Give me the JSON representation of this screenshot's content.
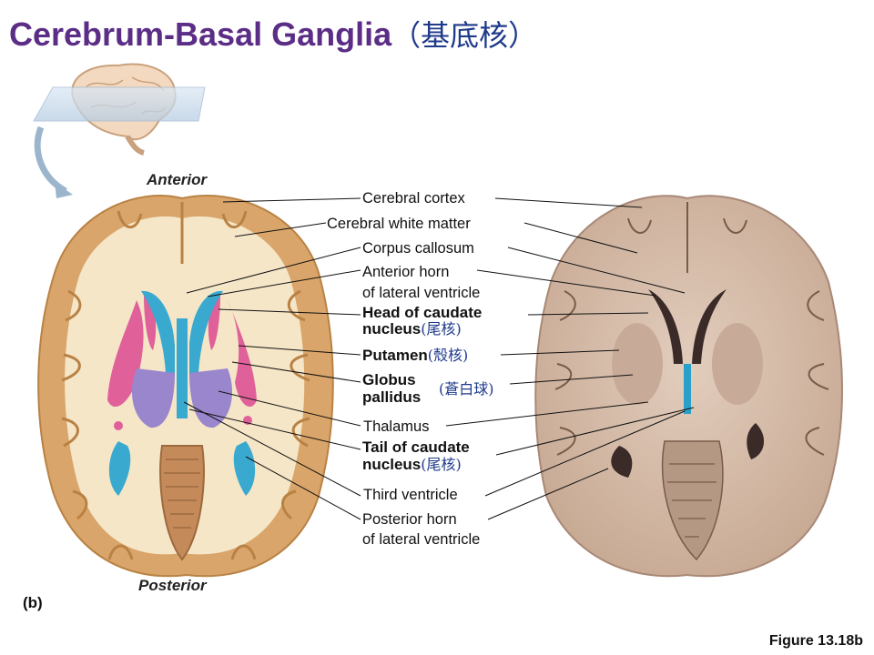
{
  "title": {
    "text": "Cerebrum-Basal Ganglia",
    "cjk": "（基底核）"
  },
  "orientation": {
    "anterior": "Anterior",
    "posterior": "Posterior"
  },
  "panel_label": "(b)",
  "figure_label": "Figure 13.18b",
  "labels": {
    "cerebral_cortex": "Cerebral cortex",
    "cerebral_white_matter": "Cerebral white matter",
    "corpus_callosum": "Corpus callosum",
    "anterior_horn_1": "Anterior horn",
    "anterior_horn_2": "of lateral ventricle",
    "head_caudate_1": "Head of caudate",
    "head_caudate_2": "nucleus",
    "head_caudate_cjk": "(尾核)",
    "putamen": "Putamen",
    "putamen_cjk": "(殼核)",
    "globus_1": "Globus",
    "globus_2": "pallidus",
    "globus_cjk": "(蒼白球)",
    "thalamus": "Thalamus",
    "tail_caudate_1": "Tail of caudate",
    "tail_caudate_2": "nucleus",
    "tail_caudate_cjk": "(尾核)",
    "third_ventricle": "Third ventricle",
    "posterior_horn_1": "Posterior horn",
    "posterior_horn_2": "of lateral ventricle"
  },
  "colors": {
    "title": "#5b2d86",
    "cortex": "#d9a56a",
    "white_matter": "#f5e6c8",
    "ventricle": "#3aa9cf",
    "caudate_putamen": "#e0609a",
    "globus_thalamus": "#9a86cc",
    "photo_tissue": "#d4bba8"
  }
}
